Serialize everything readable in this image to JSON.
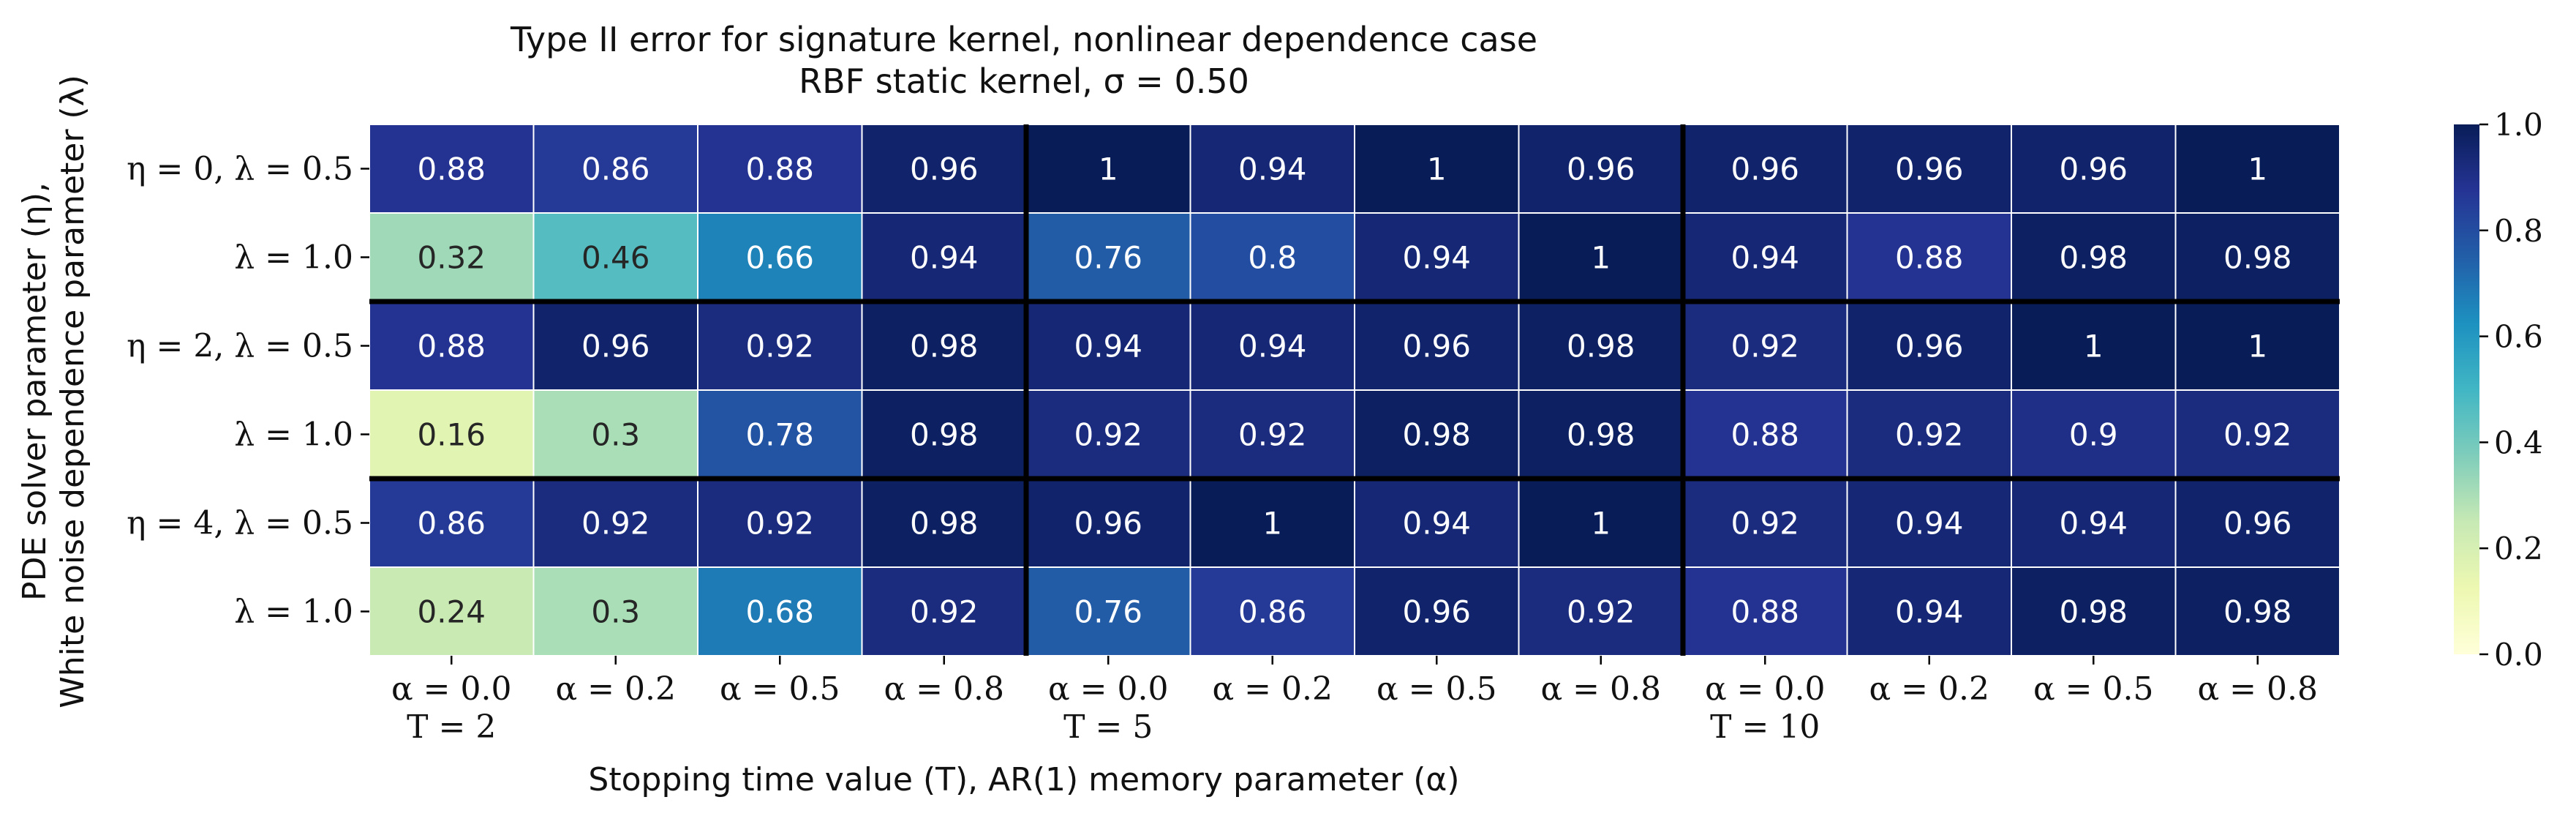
{
  "chart_data": {
    "type": "heatmap",
    "title": "Type II error for signature kernel, nonlinear dependence case",
    "subtitle": "RBF static kernel, σ = 0.50",
    "xlabel": "Stopping time value (T), AR(1) memory parameter (α)",
    "ylabel_line1": "PDE solver parameter (η),",
    "ylabel_line2": "White noise dependence parameter (λ)",
    "x_tick_labels": [
      "α = 0.0",
      "α = 0.2",
      "α = 0.5",
      "α = 0.8",
      "α = 0.0",
      "α = 0.2",
      "α = 0.5",
      "α = 0.8",
      "α = 0.0",
      "α = 0.2",
      "α = 0.5",
      "α = 0.8"
    ],
    "x_group_labels": [
      "T = 2",
      "T = 5",
      "T = 10"
    ],
    "y_tick_labels": [
      "η = 0, λ = 0.5",
      "λ = 1.0",
      "η = 2, λ = 0.5",
      "λ = 1.0",
      "η = 4, λ = 0.5",
      "λ = 1.0"
    ],
    "values": [
      [
        0.88,
        0.86,
        0.88,
        0.96,
        1,
        0.94,
        1,
        0.96,
        0.96,
        0.96,
        0.96,
        1
      ],
      [
        0.32,
        0.46,
        0.66,
        0.94,
        0.76,
        0.8,
        0.94,
        1,
        0.94,
        0.88,
        0.98,
        0.98
      ],
      [
        0.88,
        0.96,
        0.92,
        0.98,
        0.94,
        0.94,
        0.96,
        0.98,
        0.92,
        0.96,
        1,
        1
      ],
      [
        0.16,
        0.3,
        0.78,
        0.98,
        0.92,
        0.92,
        0.98,
        0.98,
        0.88,
        0.92,
        0.9,
        0.92
      ],
      [
        0.86,
        0.92,
        0.92,
        0.98,
        0.96,
        1,
        0.94,
        1,
        0.92,
        0.94,
        0.94,
        0.96
      ],
      [
        0.24,
        0.3,
        0.68,
        0.92,
        0.76,
        0.86,
        0.96,
        0.92,
        0.88,
        0.94,
        0.98,
        0.98
      ]
    ],
    "colorbar": {
      "range": [
        0.0,
        1.0
      ],
      "ticks": [
        "0.0",
        "0.2",
        "0.4",
        "0.6",
        "0.8",
        "1.0"
      ],
      "colormap": "YlGnBu"
    },
    "grid": false
  }
}
